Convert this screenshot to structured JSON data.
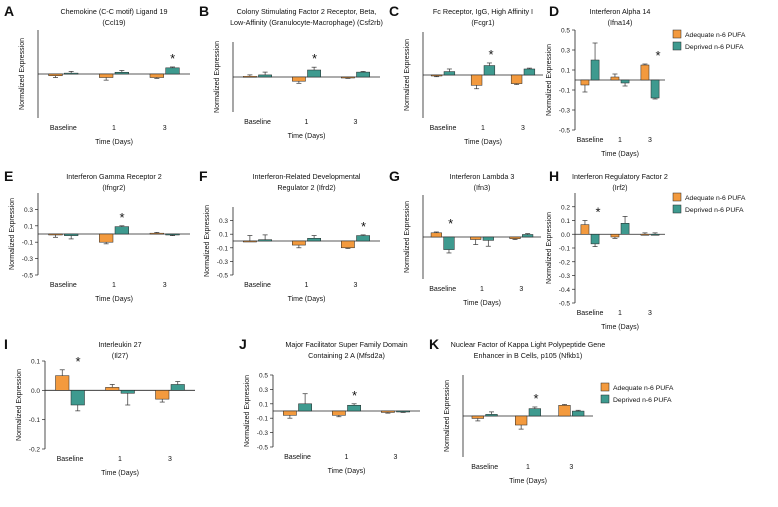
{
  "colors": {
    "adequate": "#F39A3E",
    "deprived": "#3E9A8F",
    "axis": "#222222",
    "error": "#333333"
  },
  "legend": {
    "adequate": "Adequate n-6 PUFA",
    "deprived": "Deprived n-6 PUFA"
  },
  "chart_data": [
    {
      "letter": "A",
      "type": "bar",
      "title": [
        "Chemokine (C-C motif) Ligand 19",
        "(Ccl19)"
      ],
      "ylabel": "Normalized Expression",
      "xlabel": "Time (Days)",
      "categories": [
        "Baseline",
        "1",
        "3"
      ],
      "ylim": [
        -0.5,
        0.5
      ],
      "yticks": [],
      "star": "*",
      "star_index": 2,
      "series": [
        {
          "name": "Adequate n-6 PUFA",
          "values": [
            -0.02,
            -0.04,
            -0.04
          ],
          "errors": [
            0.02,
            0.03,
            0.01
          ]
        },
        {
          "name": "Deprived n-6 PUFA",
          "values": [
            0.01,
            0.02,
            0.07
          ],
          "errors": [
            0.02,
            0.02,
            0.01
          ]
        }
      ]
    },
    {
      "letter": "B",
      "type": "bar",
      "title": [
        "Colony Stimulating Factor 2 Receptor, Beta,",
        "Low-Affinity (Granulocyte-Macrophage) (Csf2rb)"
      ],
      "ylabel": "Normalized Expression",
      "xlabel": "Time (Days)",
      "categories": [
        "Baseline",
        "1",
        "3"
      ],
      "ylim": [
        -0.5,
        0.5
      ],
      "yticks": [],
      "star": "*",
      "star_index": 1,
      "series": [
        {
          "name": "Adequate n-6 PUFA",
          "values": [
            0.01,
            -0.06,
            -0.01
          ],
          "errors": [
            0.02,
            0.03,
            0.01
          ]
        },
        {
          "name": "Deprived n-6 PUFA",
          "values": [
            0.03,
            0.1,
            0.07
          ],
          "errors": [
            0.04,
            0.04,
            0.01
          ]
        }
      ]
    },
    {
      "letter": "C",
      "type": "bar",
      "title": [
        "Fc Receptor, IgG, High Affinity I",
        "(Fcgr1)"
      ],
      "ylabel": "Normalized Expression",
      "xlabel": "Time (Days)",
      "categories": [
        "Baseline",
        "1",
        "3"
      ],
      "ylim": [
        -0.5,
        0.5
      ],
      "yticks": [],
      "star": "*",
      "star_index": 1,
      "series": [
        {
          "name": "Adequate n-6 PUFA",
          "values": [
            -0.01,
            -0.12,
            -0.1
          ],
          "errors": [
            0.01,
            0.04,
            0.01
          ]
        },
        {
          "name": "Deprived n-6 PUFA",
          "values": [
            0.04,
            0.11,
            0.07
          ],
          "errors": [
            0.03,
            0.03,
            0.01
          ]
        }
      ]
    },
    {
      "letter": "D",
      "type": "bar",
      "title": [
        "Interferon Alpha 14",
        "(Ifna14)"
      ],
      "ylabel": "Normalized Expression",
      "xlabel": "Time (Days)",
      "categories": [
        "Baseline",
        "1",
        "3"
      ],
      "ylim": [
        -0.5,
        0.5
      ],
      "yticks": [
        "0.5",
        "0.3",
        "0.1",
        "-0.1",
        "-0.3",
        "-0.5"
      ],
      "star": "*",
      "star_index": 2,
      "series": [
        {
          "name": "Adequate n-6 PUFA",
          "values": [
            -0.05,
            0.03,
            0.15
          ],
          "errors": [
            0.07,
            0.03,
            0.01
          ]
        },
        {
          "name": "Deprived n-6 PUFA",
          "values": [
            0.2,
            -0.03,
            -0.18
          ],
          "errors": [
            0.17,
            0.03,
            0.01
          ]
        }
      ]
    },
    {
      "letter": "E",
      "type": "bar",
      "title": [
        "Interferon Gamma Receptor 2",
        "(Ifngr2)"
      ],
      "ylabel": "Normalized Expression",
      "xlabel": "Time (Days)",
      "categories": [
        "Baseline",
        "1",
        "3"
      ],
      "ylim": [
        -0.5,
        0.5
      ],
      "yticks": [
        "0.3",
        "0.1",
        "-0.1",
        "-0.3",
        "-0.5"
      ],
      "star": "*",
      "star_index": 1,
      "series": [
        {
          "name": "Adequate n-6 PUFA",
          "values": [
            -0.01,
            -0.1,
            0.01
          ],
          "errors": [
            0.03,
            0.02,
            0.01
          ]
        },
        {
          "name": "Deprived n-6 PUFA",
          "values": [
            -0.02,
            0.09,
            -0.01
          ],
          "errors": [
            0.04,
            0.01,
            0.01
          ]
        }
      ]
    },
    {
      "letter": "F",
      "type": "bar",
      "title": [
        "Interferon-Related Developmental",
        "Regulator 2 (Ifrd2)"
      ],
      "ylabel": "Normalized Expression",
      "xlabel": "Time (Days)",
      "categories": [
        "Baseline",
        "1",
        "3"
      ],
      "ylim": [
        -0.5,
        0.5
      ],
      "yticks": [
        "0.3",
        "0.1",
        "-0.1",
        "-0.3",
        "-0.5"
      ],
      "star": "*",
      "star_index": 2,
      "series": [
        {
          "name": "Adequate n-6 PUFA",
          "values": [
            0.0,
            -0.06,
            -0.1
          ],
          "errors": [
            0.08,
            0.04,
            0.01
          ]
        },
        {
          "name": "Deprived n-6 PUFA",
          "values": [
            0.02,
            0.04,
            0.08
          ],
          "errors": [
            0.07,
            0.04,
            0.01
          ]
        }
      ]
    },
    {
      "letter": "G",
      "type": "bar",
      "title": [
        "Interferon Lambda 3",
        "(Ifn3)"
      ],
      "ylabel": "Normalized Expression",
      "xlabel": "Time (Days)",
      "categories": [
        "Baseline",
        "1",
        "3"
      ],
      "ylim": [
        -0.5,
        0.5
      ],
      "yticks": [],
      "star": "*",
      "star_index": 0,
      "series": [
        {
          "name": "Adequate n-6 PUFA",
          "values": [
            0.05,
            -0.03,
            -0.02
          ],
          "errors": [
            0.01,
            0.06,
            0.01
          ]
        },
        {
          "name": "Deprived n-6 PUFA",
          "values": [
            -0.15,
            -0.04,
            0.03
          ],
          "errors": [
            0.04,
            0.07,
            0.01
          ]
        }
      ]
    },
    {
      "letter": "H",
      "type": "bar",
      "title": [
        "Interferon Regulatory Factor 2",
        "(Irf2)"
      ],
      "ylabel": "Normalized Expression",
      "xlabel": "Time (Days)",
      "categories": [
        "Baseline",
        "1",
        "3"
      ],
      "ylim": [
        -0.5,
        0.3
      ],
      "yticks": [
        "0.2",
        "0.1",
        "0.0",
        "-0.1",
        "-0.2",
        "-0.3",
        "-0.4",
        "-0.5"
      ],
      "star": "*",
      "star_index": 0,
      "series": [
        {
          "name": "Adequate n-6 PUFA",
          "values": [
            0.07,
            -0.02,
            0.0
          ],
          "errors": [
            0.03,
            0.01,
            0.01
          ]
        },
        {
          "name": "Deprived n-6 PUFA",
          "values": [
            -0.07,
            0.08,
            0.0
          ],
          "errors": [
            0.02,
            0.05,
            0.01
          ]
        }
      ]
    },
    {
      "letter": "I",
      "type": "bar",
      "title": [
        "Interleukin 27",
        "(Il27)"
      ],
      "ylabel": "Normalized Expression",
      "xlabel": "Time (Days)",
      "categories": [
        "Baseline",
        "1",
        "3"
      ],
      "ylim": [
        -0.2,
        0.1
      ],
      "yticks": [
        "0.1",
        "0.0",
        "-0.1",
        "-0.2"
      ],
      "star": "*",
      "star_index": 0,
      "series": [
        {
          "name": "Adequate n-6 PUFA",
          "values": [
            0.05,
            0.01,
            -0.03
          ],
          "errors": [
            0.02,
            0.01,
            0.01
          ]
        },
        {
          "name": "Deprived n-6 PUFA",
          "values": [
            -0.05,
            -0.01,
            0.02
          ],
          "errors": [
            0.02,
            0.04,
            0.01
          ]
        }
      ]
    },
    {
      "letter": "J",
      "type": "bar",
      "title": [
        "Major Facilitator Super Family Domain",
        "Containing 2 A (Mfsd2a)"
      ],
      "ylabel": "Normalized Expression",
      "xlabel": "Time (Days)",
      "categories": [
        "Baseline",
        "1",
        "3"
      ],
      "ylim": [
        -0.5,
        0.5
      ],
      "yticks": [
        "0.5",
        "0.3",
        "0.1",
        "-0.1",
        "-0.3",
        "-0.5"
      ],
      "star": "*",
      "star_index": 1,
      "series": [
        {
          "name": "Adequate n-6 PUFA",
          "values": [
            -0.06,
            -0.06,
            -0.02
          ],
          "errors": [
            0.04,
            0.02,
            0.01
          ]
        },
        {
          "name": "Deprived n-6 PUFA",
          "values": [
            0.1,
            0.08,
            -0.01
          ],
          "errors": [
            0.14,
            0.02,
            0.01
          ]
        }
      ]
    },
    {
      "letter": "K",
      "type": "bar",
      "title": [
        "Nuclear Factor of Kappa Light Polypeptide Gene",
        "Enhancer in B Cells, p105 (Nfkb1)"
      ],
      "ylabel": "Normalized Expression",
      "xlabel": "Time (Days)",
      "categories": [
        "Baseline",
        "1",
        "3"
      ],
      "ylim": [
        -0.5,
        0.5
      ],
      "yticks": [],
      "star": "*",
      "star_index": 1,
      "series": [
        {
          "name": "Adequate n-6 PUFA",
          "values": [
            -0.03,
            -0.11,
            0.13
          ],
          "errors": [
            0.03,
            0.05,
            0.01
          ]
        },
        {
          "name": "Deprived n-6 PUFA",
          "values": [
            0.02,
            0.09,
            0.06
          ],
          "errors": [
            0.03,
            0.02,
            0.01
          ]
        }
      ]
    }
  ]
}
